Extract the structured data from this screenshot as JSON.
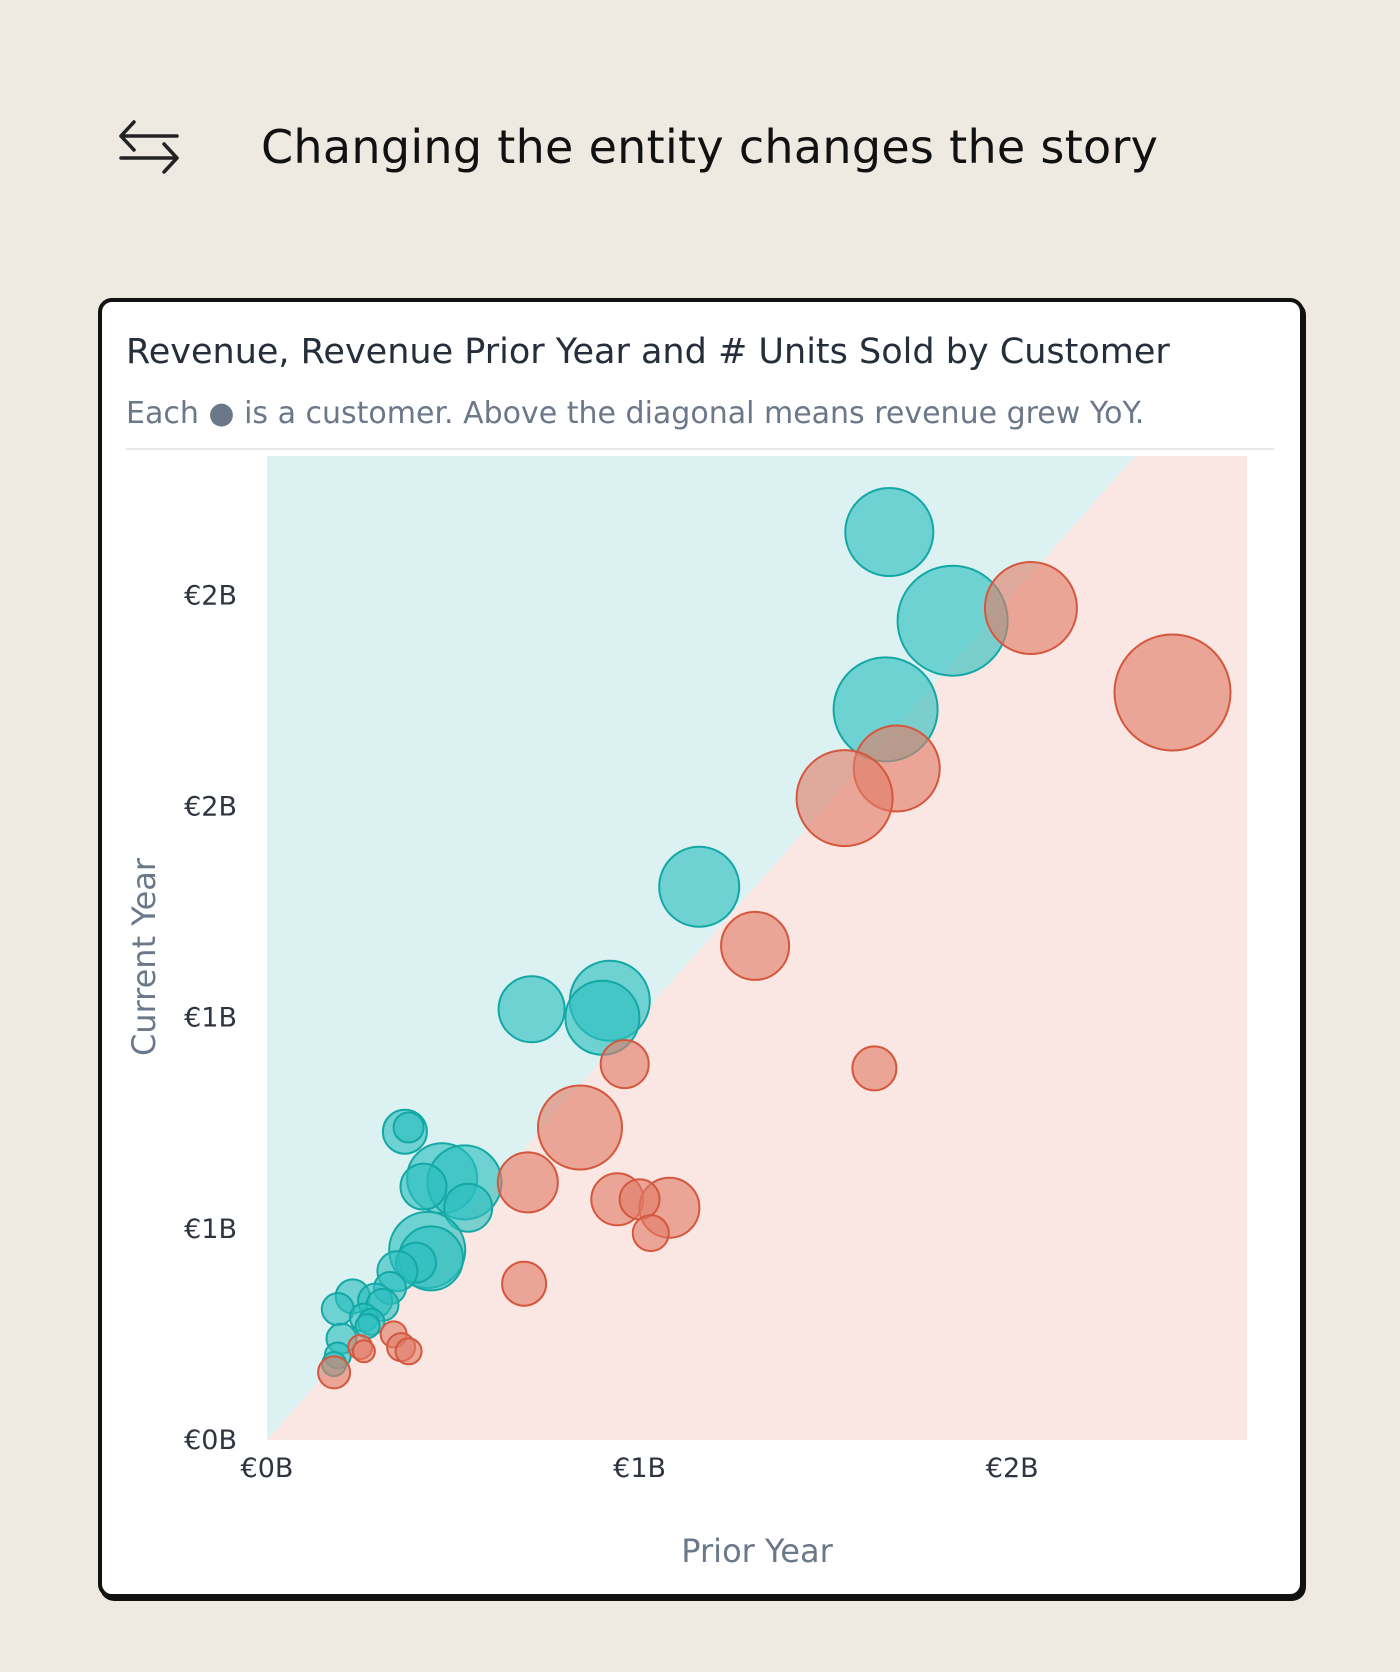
{
  "page": {
    "title": "Changing the entity changes the story",
    "icon": "swap-arrows-icon"
  },
  "chart_data": {
    "type": "scatter",
    "variant": "bubble",
    "title": "Revenue, Revenue Prior Year and # Units Sold by Customer",
    "subtitle": "Each ● is a customer. Above the diagonal means revenue grew YoY.",
    "xlabel": "Prior Year",
    "ylabel": "Current Year",
    "x_unit": "B EUR",
    "y_unit": "B EUR",
    "xlim": [
      0,
      2.63
    ],
    "ylim": [
      0,
      2.33
    ],
    "x_ticks": [
      {
        "value": 0,
        "label": "€0B"
      },
      {
        "value": 1,
        "label": "€1B"
      },
      {
        "value": 2,
        "label": "€2B"
      }
    ],
    "y_ticks": [
      {
        "value": 0,
        "label": "€0B"
      },
      {
        "value": 0.5,
        "label": "€1B"
      },
      {
        "value": 1.0,
        "label": "€1B"
      },
      {
        "value": 1.5,
        "label": "€2B"
      },
      {
        "value": 2.0,
        "label": "€2B"
      }
    ],
    "diagonal": "y = x",
    "grid": false,
    "legend": "none",
    "size_measure": "# Units Sold",
    "regions": {
      "above_color": "#DCF2F2",
      "below_color": "#FAE6E2"
    },
    "series": [
      {
        "id": "growth",
        "color": "#2BBFBE",
        "stroke": "#13A8A6",
        "points": [
          {
            "x": 1.67,
            "y": 2.15,
            "size": 44
          },
          {
            "x": 1.84,
            "y": 1.94,
            "size": 55
          },
          {
            "x": 1.66,
            "y": 1.73,
            "size": 52
          },
          {
            "x": 1.16,
            "y": 1.31,
            "size": 40
          },
          {
            "x": 0.92,
            "y": 1.04,
            "size": 40
          },
          {
            "x": 0.9,
            "y": 1.0,
            "size": 37
          },
          {
            "x": 0.71,
            "y": 1.02,
            "size": 33
          },
          {
            "x": 0.37,
            "y": 0.73,
            "size": 22
          },
          {
            "x": 0.38,
            "y": 0.74,
            "size": 15
          },
          {
            "x": 0.47,
            "y": 0.62,
            "size": 35
          },
          {
            "x": 0.53,
            "y": 0.61,
            "size": 37
          },
          {
            "x": 0.42,
            "y": 0.6,
            "size": 23
          },
          {
            "x": 0.54,
            "y": 0.55,
            "size": 24
          },
          {
            "x": 0.43,
            "y": 0.45,
            "size": 38
          },
          {
            "x": 0.44,
            "y": 0.43,
            "size": 32
          },
          {
            "x": 0.4,
            "y": 0.42,
            "size": 20
          },
          {
            "x": 0.35,
            "y": 0.4,
            "size": 20
          },
          {
            "x": 0.33,
            "y": 0.36,
            "size": 16
          },
          {
            "x": 0.23,
            "y": 0.34,
            "size": 17
          },
          {
            "x": 0.29,
            "y": 0.33,
            "size": 17
          },
          {
            "x": 0.31,
            "y": 0.32,
            "size": 16
          },
          {
            "x": 0.19,
            "y": 0.31,
            "size": 16
          },
          {
            "x": 0.26,
            "y": 0.29,
            "size": 14
          },
          {
            "x": 0.28,
            "y": 0.28,
            "size": 13
          },
          {
            "x": 0.27,
            "y": 0.27,
            "size": 12
          },
          {
            "x": 0.2,
            "y": 0.24,
            "size": 15
          },
          {
            "x": 0.19,
            "y": 0.2,
            "size": 13
          },
          {
            "x": 0.18,
            "y": 0.18,
            "size": 12
          }
        ]
      },
      {
        "id": "decline",
        "color": "#E07C67",
        "stroke": "#D4573E",
        "points": [
          {
            "x": 2.05,
            "y": 1.97,
            "size": 46
          },
          {
            "x": 2.43,
            "y": 1.77,
            "size": 58
          },
          {
            "x": 1.69,
            "y": 1.59,
            "size": 43
          },
          {
            "x": 1.55,
            "y": 1.52,
            "size": 48
          },
          {
            "x": 1.31,
            "y": 1.17,
            "size": 34
          },
          {
            "x": 0.96,
            "y": 0.89,
            "size": 24
          },
          {
            "x": 1.63,
            "y": 0.88,
            "size": 22
          },
          {
            "x": 0.84,
            "y": 0.74,
            "size": 42
          },
          {
            "x": 0.7,
            "y": 0.61,
            "size": 30
          },
          {
            "x": 0.94,
            "y": 0.57,
            "size": 26
          },
          {
            "x": 1.08,
            "y": 0.55,
            "size": 30
          },
          {
            "x": 1.0,
            "y": 0.57,
            "size": 20
          },
          {
            "x": 1.03,
            "y": 0.49,
            "size": 18
          },
          {
            "x": 0.69,
            "y": 0.37,
            "size": 22
          },
          {
            "x": 0.34,
            "y": 0.25,
            "size": 13
          },
          {
            "x": 0.36,
            "y": 0.22,
            "size": 14
          },
          {
            "x": 0.38,
            "y": 0.21,
            "size": 13
          },
          {
            "x": 0.25,
            "y": 0.22,
            "size": 12
          },
          {
            "x": 0.26,
            "y": 0.21,
            "size": 11
          },
          {
            "x": 0.18,
            "y": 0.16,
            "size": 16
          }
        ]
      }
    ]
  }
}
